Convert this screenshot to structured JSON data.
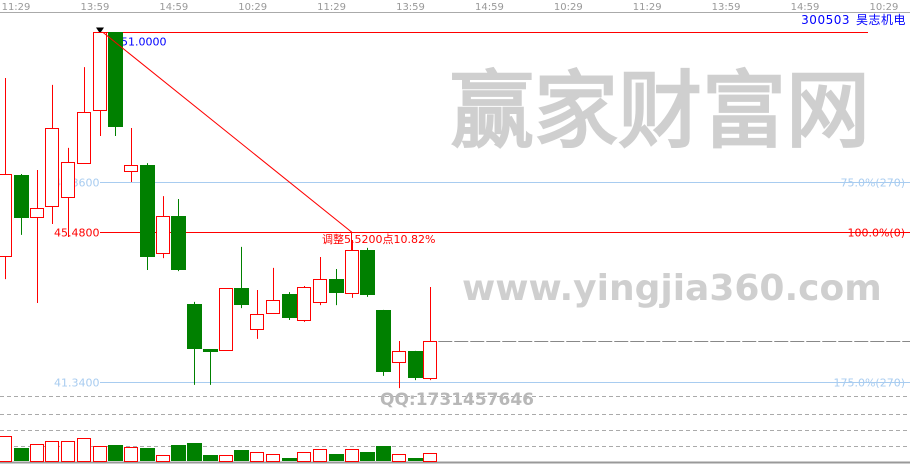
{
  "header": {
    "stock_code": "300503",
    "stock_name": "昊志机电",
    "time_ticks": [
      "11:29",
      "13:59",
      "14:59",
      "10:29",
      "11:29",
      "13:59",
      "14:59",
      "10:29",
      "11:29",
      "13:59",
      "14:59",
      "10:29"
    ]
  },
  "colors": {
    "up": "#ff0000",
    "down": "#008000",
    "fib_line": "#a8ccf0",
    "level_line": "#ff0000",
    "high_label": "#0000ff",
    "grid_dash": "#aaaaaa",
    "watermark": "#c8c8c8"
  },
  "levels": [
    {
      "price": 51.0,
      "left_label": "51.0000",
      "right_label": "",
      "type": "high"
    },
    {
      "price": 46.86,
      "left_label": "46.8600",
      "right_label": "75.0%(270)",
      "type": "fib"
    },
    {
      "price": 45.48,
      "left_label": "45.4800",
      "right_label": "100.0%(0)",
      "type": "level"
    },
    {
      "price": 41.34,
      "left_label": "41.3400",
      "right_label": "175.0%(270)",
      "type": "fib"
    }
  ],
  "annotation": {
    "text": "调整5.5200点10.82%",
    "from_price": 51.0,
    "to_price": 45.48
  },
  "last_price": 42.47,
  "candles": [
    {
      "o": 44.82,
      "h": 49.73,
      "l": 44.18,
      "c": 47.08
    },
    {
      "o": 47.05,
      "h": 47.08,
      "l": 45.4,
      "c": 45.87
    },
    {
      "o": 45.89,
      "h": 47.19,
      "l": 43.52,
      "c": 46.14
    },
    {
      "o": 46.2,
      "h": 49.54,
      "l": 45.7,
      "c": 48.35
    },
    {
      "o": 46.45,
      "h": 47.8,
      "l": 45.34,
      "c": 47.41
    },
    {
      "o": 47.38,
      "h": 50.03,
      "l": 47.36,
      "c": 48.79
    },
    {
      "o": 48.85,
      "h": 51.0,
      "l": 48.13,
      "c": 51.0
    },
    {
      "o": 51.0,
      "h": 51.0,
      "l": 48.13,
      "c": 48.38
    },
    {
      "o": 47.16,
      "h": 48.35,
      "l": 46.86,
      "c": 47.33
    },
    {
      "o": 47.33,
      "h": 47.38,
      "l": 44.43,
      "c": 44.79
    },
    {
      "o": 44.9,
      "h": 46.47,
      "l": 44.76,
      "c": 45.92
    },
    {
      "o": 45.92,
      "h": 46.39,
      "l": 44.4,
      "c": 44.43
    },
    {
      "o": 43.49,
      "h": 43.55,
      "l": 41.26,
      "c": 42.25
    },
    {
      "o": 42.25,
      "h": 42.25,
      "l": 41.26,
      "c": 42.17
    },
    {
      "o": 42.22,
      "h": 43.93,
      "l": 42.22,
      "c": 43.93
    },
    {
      "o": 43.93,
      "h": 45.07,
      "l": 43.38,
      "c": 43.46
    },
    {
      "o": 42.8,
      "h": 43.88,
      "l": 42.53,
      "c": 43.22
    },
    {
      "o": 43.24,
      "h": 44.49,
      "l": 43.22,
      "c": 43.6
    },
    {
      "o": 43.77,
      "h": 43.82,
      "l": 43.05,
      "c": 43.11
    },
    {
      "o": 43.05,
      "h": 43.99,
      "l": 43.0,
      "c": 43.96
    },
    {
      "o": 43.55,
      "h": 44.79,
      "l": 43.46,
      "c": 44.18
    },
    {
      "o": 44.18,
      "h": 44.46,
      "l": 43.46,
      "c": 43.8
    },
    {
      "o": 43.8,
      "h": 45.26,
      "l": 43.66,
      "c": 44.98
    },
    {
      "o": 44.98,
      "h": 45.04,
      "l": 43.69,
      "c": 43.74
    },
    {
      "o": 43.33,
      "h": 43.33,
      "l": 41.51,
      "c": 41.62
    },
    {
      "o": 41.89,
      "h": 42.47,
      "l": 41.17,
      "c": 42.2
    },
    {
      "o": 42.2,
      "h": 42.2,
      "l": 41.39,
      "c": 41.45
    },
    {
      "o": 41.45,
      "h": 43.96,
      "l": 41.39,
      "c": 42.47
    }
  ],
  "volumes": [
    25,
    13,
    17,
    20,
    20,
    23,
    15,
    16,
    14,
    13,
    6,
    16,
    18,
    6,
    6,
    11,
    9,
    7,
    3,
    9,
    12,
    7,
    12,
    9,
    15,
    7,
    3,
    8
  ],
  "watermark": {
    "brand": "赢家财富网",
    "site": "www.yingjia360.com",
    "qq": "QQ:1731457646"
  }
}
